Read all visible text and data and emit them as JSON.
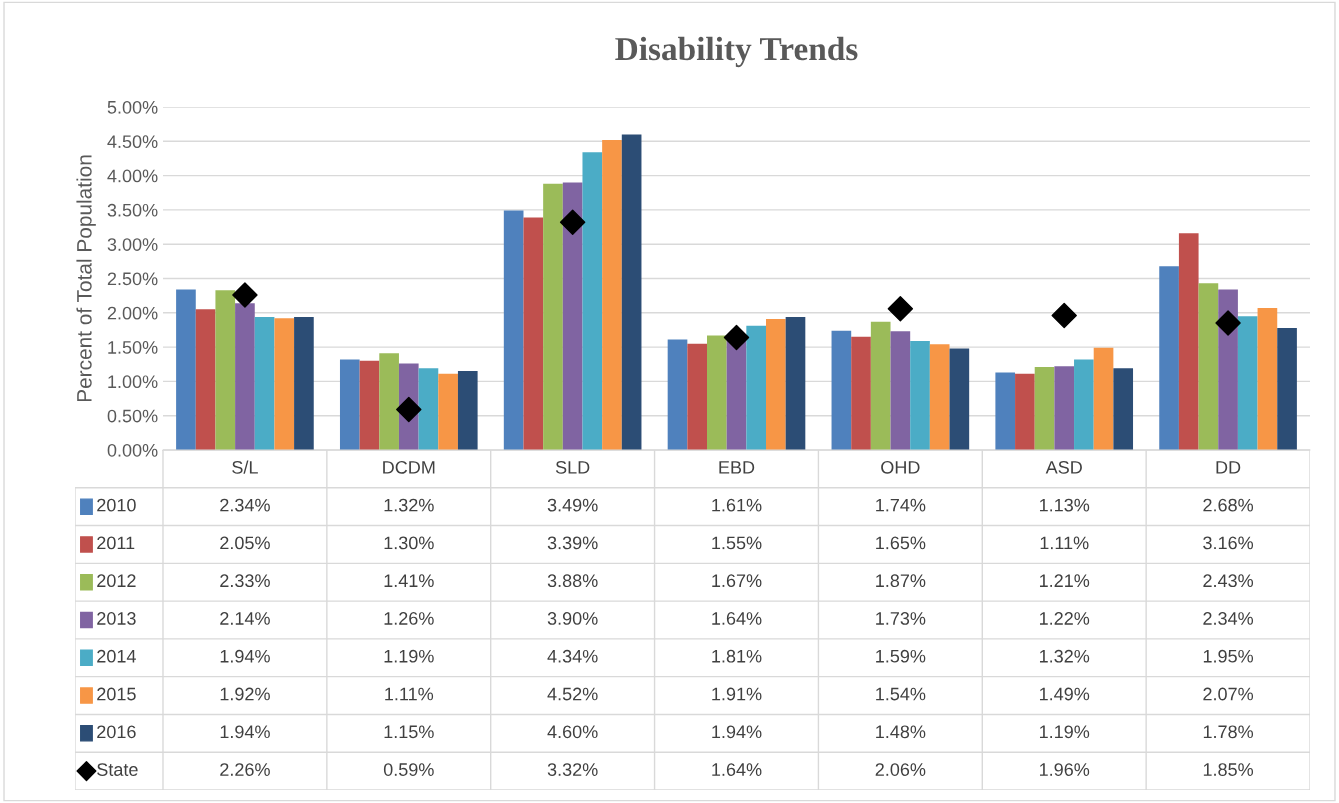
{
  "chart_data": {
    "type": "bar",
    "title": "Disability Trends",
    "ylabel": "Percent of Total Population",
    "categories": [
      "S/L",
      "DCDM",
      "SLD",
      "EBD",
      "OHD",
      "ASD",
      "DD"
    ],
    "series": [
      {
        "name": "2010",
        "color": "#4f81bd",
        "values": [
          2.34,
          1.32,
          3.49,
          1.61,
          1.74,
          1.13,
          2.68
        ],
        "value_labels": [
          "2.34%",
          "1.32%",
          "3.49%",
          "1.61%",
          "1.74%",
          "1.13%",
          "2.68%"
        ]
      },
      {
        "name": "2011",
        "color": "#c0504d",
        "values": [
          2.05,
          1.3,
          3.39,
          1.55,
          1.65,
          1.11,
          3.16
        ],
        "value_labels": [
          "2.05%",
          "1.30%",
          "3.39%",
          "1.55%",
          "1.65%",
          "1.11%",
          "3.16%"
        ]
      },
      {
        "name": "2012",
        "color": "#9bbb59",
        "values": [
          2.33,
          1.41,
          3.88,
          1.67,
          1.87,
          1.21,
          2.43
        ],
        "value_labels": [
          "2.33%",
          "1.41%",
          "3.88%",
          "1.67%",
          "1.87%",
          "1.21%",
          "2.43%"
        ]
      },
      {
        "name": "2013",
        "color": "#8064a2",
        "values": [
          2.14,
          1.26,
          3.9,
          1.64,
          1.73,
          1.22,
          2.34
        ],
        "value_labels": [
          "2.14%",
          "1.26%",
          "3.90%",
          "1.64%",
          "1.73%",
          "1.22%",
          "2.34%"
        ]
      },
      {
        "name": "2014",
        "color": "#4bacc6",
        "values": [
          1.94,
          1.19,
          4.34,
          1.81,
          1.59,
          1.32,
          1.95
        ],
        "value_labels": [
          "1.94%",
          "1.19%",
          "4.34%",
          "1.81%",
          "1.59%",
          "1.32%",
          "1.95%"
        ]
      },
      {
        "name": "2015",
        "color": "#f79646",
        "values": [
          1.92,
          1.11,
          4.52,
          1.91,
          1.54,
          1.49,
          2.07
        ],
        "value_labels": [
          "1.92%",
          "1.11%",
          "4.52%",
          "1.91%",
          "1.54%",
          "1.49%",
          "2.07%"
        ]
      },
      {
        "name": "2016",
        "color": "#2c4d75",
        "values": [
          1.94,
          1.15,
          4.6,
          1.94,
          1.48,
          1.19,
          1.78
        ],
        "value_labels": [
          "1.94%",
          "1.15%",
          "4.60%",
          "1.94%",
          "1.48%",
          "1.19%",
          "1.78%"
        ]
      },
      {
        "name": "State",
        "type": "scatter",
        "marker": "diamond",
        "color": "#000000",
        "values": [
          2.26,
          0.59,
          3.32,
          1.64,
          2.06,
          1.96,
          1.85
        ],
        "value_labels": [
          "2.26%",
          "0.59%",
          "3.32%",
          "1.64%",
          "2.06%",
          "1.96%",
          "1.85%"
        ]
      }
    ],
    "ylim": [
      0,
      5
    ],
    "yticks": [
      {
        "value": 0,
        "label": "0.00%"
      },
      {
        "value": 0.5,
        "label": "0.50%"
      },
      {
        "value": 1,
        "label": "1.00%"
      },
      {
        "value": 1.5,
        "label": "1.50%"
      },
      {
        "value": 2,
        "label": "2.00%"
      },
      {
        "value": 2.5,
        "label": "2.50%"
      },
      {
        "value": 3,
        "label": "3.00%"
      },
      {
        "value": 3.5,
        "label": "3.50%"
      },
      {
        "value": 4,
        "label": "4.00%"
      },
      {
        "value": 4.5,
        "label": "4.50%"
      },
      {
        "value": 5,
        "label": "5.00%"
      }
    ],
    "grid": "y",
    "legend": "bottom",
    "tick_labels": "y"
  }
}
